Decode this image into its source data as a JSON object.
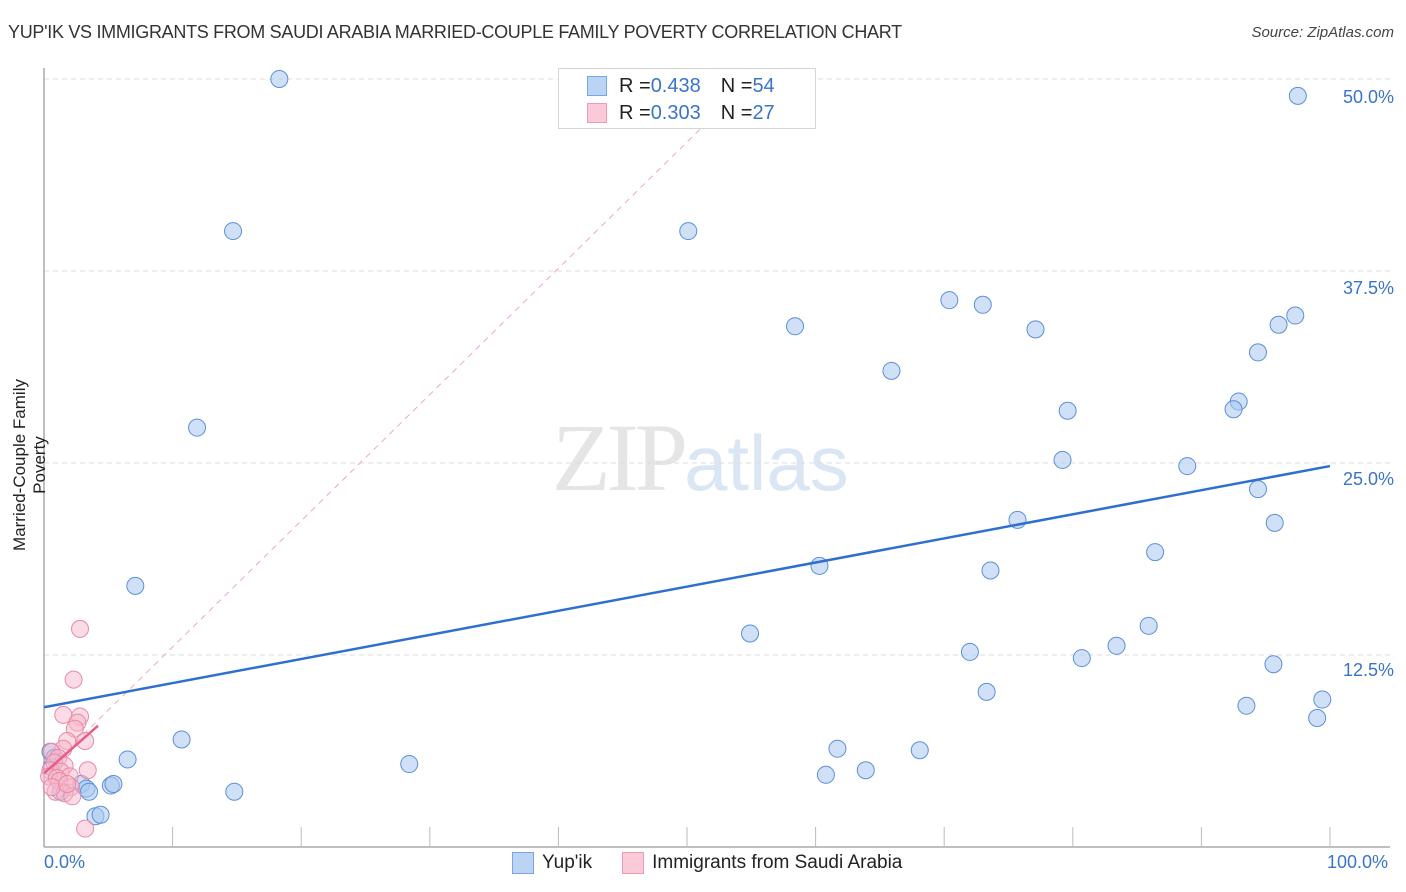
{
  "header": {
    "title": "YUP'IK VS IMMIGRANTS FROM SAUDI ARABIA MARRIED-COUPLE FAMILY POVERTY CORRELATION CHART",
    "source": "Source: ZipAtlas.com"
  },
  "legend_top": {
    "rows": [
      {
        "r_label": "R = ",
        "r_value": "0.438",
        "n_label": "N = ",
        "n_value": "54",
        "color": "#a9c8f0"
      },
      {
        "r_label": "R = ",
        "r_value": "0.303",
        "n_label": "N = ",
        "n_value": "27",
        "color": "#f7b8cb"
      }
    ]
  },
  "legend_bottom": {
    "items": [
      {
        "label": "Yup'ik",
        "color": "#a9c8f0"
      },
      {
        "label": "Immigrants from Saudi Arabia",
        "color": "#f7b8cb"
      }
    ]
  },
  "axes": {
    "ylabel": "Married-Couple Family Poverty",
    "x_ticks": [
      "0.0%",
      "100.0%"
    ],
    "y_ticks": [
      "50.0%",
      "37.5%",
      "25.0%",
      "12.5%"
    ]
  },
  "watermark": {
    "zip": "ZIP",
    "atlas": "atlas"
  },
  "colors": {
    "blue_fill": "#a9c8f0",
    "blue_stroke": "#5b8fd9",
    "blue_line": "#2f6fd0",
    "pink_fill": "#f7b8cb",
    "pink_stroke": "#e88aa6",
    "pink_line": "#e85d88",
    "tick_text": "#3a74c8"
  },
  "chart_data": {
    "type": "scatter",
    "title": "YUP'IK VS IMMIGRANTS FROM SAUDI ARABIA MARRIED-COUPLE FAMILY POVERTY CORRELATION CHART",
    "xlabel": "",
    "ylabel": "Married-Couple Family Poverty",
    "xlim": [
      0,
      100
    ],
    "ylim": [
      0,
      51
    ],
    "x_unit": "%",
    "y_unit": "%",
    "grid": "horizontal dashed at 12.5, 25, 37.5, 50",
    "legend_position": "bottom center",
    "series": [
      {
        "name": "Yup'ik",
        "R": 0.438,
        "N": 54,
        "trend": {
          "x0": 0,
          "y0": 9.1,
          "x1": 100,
          "y1": 24.8
        },
        "points": [
          [
            18.3,
            50.0
          ],
          [
            97.5,
            48.9
          ],
          [
            14.7,
            40.1
          ],
          [
            50.1,
            40.1
          ],
          [
            70.4,
            35.6
          ],
          [
            73.0,
            35.3
          ],
          [
            97.3,
            34.6
          ],
          [
            58.4,
            33.9
          ],
          [
            96.0,
            34.0
          ],
          [
            77.1,
            33.7
          ],
          [
            94.4,
            32.2
          ],
          [
            65.9,
            31.0
          ],
          [
            92.9,
            29.0
          ],
          [
            92.5,
            28.5
          ],
          [
            79.6,
            28.4
          ],
          [
            11.9,
            27.3
          ],
          [
            79.2,
            25.2
          ],
          [
            88.9,
            24.8
          ],
          [
            94.4,
            23.3
          ],
          [
            95.7,
            21.1
          ],
          [
            75.7,
            21.3
          ],
          [
            86.4,
            19.2
          ],
          [
            60.3,
            18.3
          ],
          [
            73.6,
            18.0
          ],
          [
            7.1,
            17.0
          ],
          [
            85.9,
            14.4
          ],
          [
            54.9,
            13.9
          ],
          [
            83.4,
            13.1
          ],
          [
            72.0,
            12.7
          ],
          [
            80.7,
            12.3
          ],
          [
            95.6,
            11.9
          ],
          [
            73.3,
            10.1
          ],
          [
            99.4,
            9.6
          ],
          [
            93.5,
            9.2
          ],
          [
            99.0,
            8.4
          ],
          [
            10.7,
            7.0
          ],
          [
            61.7,
            6.4
          ],
          [
            68.1,
            6.3
          ],
          [
            6.5,
            5.7
          ],
          [
            28.4,
            5.4
          ],
          [
            63.9,
            5.0
          ],
          [
            60.8,
            4.7
          ],
          [
            14.8,
            3.6
          ],
          [
            5.2,
            4.0
          ],
          [
            5.4,
            4.1
          ],
          [
            2.9,
            4.1
          ],
          [
            3.3,
            3.8
          ],
          [
            3.5,
            3.6
          ],
          [
            1.3,
            3.6
          ],
          [
            0.5,
            6.2
          ],
          [
            0.8,
            5.8
          ],
          [
            0.6,
            5.2
          ],
          [
            4.0,
            2.0
          ],
          [
            4.4,
            2.1
          ]
        ]
      },
      {
        "name": "Immigrants from Saudi Arabia",
        "R": 0.303,
        "N": 27,
        "trend": {
          "x0": 0,
          "y0": 4.8,
          "x1": 4.2,
          "y1": 7.9
        },
        "trend_extended_dashed": {
          "x0": 0,
          "y0": 4.8,
          "x1": 55,
          "y1": 50
        },
        "points": [
          [
            2.8,
            14.2
          ],
          [
            2.3,
            10.9
          ],
          [
            1.5,
            8.6
          ],
          [
            2.8,
            8.5
          ],
          [
            2.6,
            8.1
          ],
          [
            2.4,
            7.7
          ],
          [
            3.2,
            6.9
          ],
          [
            1.8,
            6.9
          ],
          [
            1.5,
            6.4
          ],
          [
            0.6,
            6.2
          ],
          [
            1.1,
            5.8
          ],
          [
            0.8,
            5.5
          ],
          [
            1.6,
            5.3
          ],
          [
            0.5,
            5.0
          ],
          [
            1.3,
            4.9
          ],
          [
            3.4,
            5.0
          ],
          [
            0.4,
            4.6
          ],
          [
            1.0,
            4.5
          ],
          [
            2.0,
            4.6
          ],
          [
            1.2,
            4.3
          ],
          [
            2.1,
            3.9
          ],
          [
            0.9,
            3.6
          ],
          [
            1.6,
            3.5
          ],
          [
            2.2,
            3.3
          ],
          [
            0.6,
            3.9
          ],
          [
            1.8,
            4.1
          ],
          [
            3.2,
            1.2
          ]
        ]
      }
    ]
  }
}
